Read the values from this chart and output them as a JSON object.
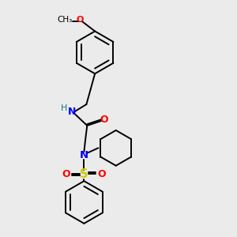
{
  "background_color": "#ebebeb",
  "line_color": "#000000",
  "N_color": "#0000ff",
  "O_color": "#ff0000",
  "S_color": "#cccc00",
  "H_color": "#008080",
  "font_size": 8.0,
  "bond_width": 1.4,
  "figsize": [
    3.0,
    3.0
  ],
  "dpi": 100,
  "methoxy_label": "O",
  "methyl_label": "CH₃",
  "NH_label": "N",
  "H_label": "H",
  "O_label": "O",
  "N2_label": "N",
  "S_label": "S"
}
